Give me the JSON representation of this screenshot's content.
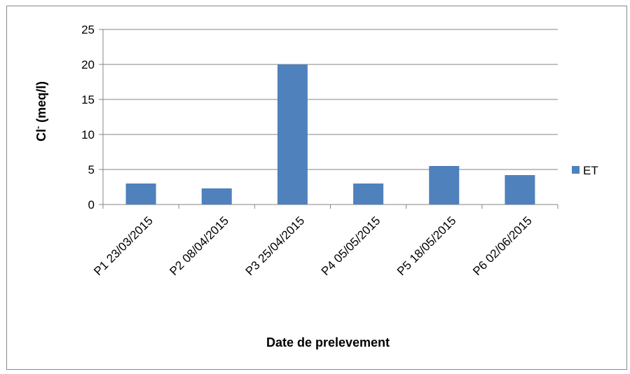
{
  "chart_data": {
    "type": "bar",
    "categories": [
      "P1 23/03/2015",
      "P2 08/04/2015",
      "P3 25/04/2015",
      "P4 05/05/2015",
      "P5 18/05/2015",
      "P6 02/06/2015"
    ],
    "series": [
      {
        "name": "ET",
        "values": [
          3,
          2.3,
          20,
          3,
          5.5,
          4.2
        ]
      }
    ],
    "title": "",
    "xlabel": "Date de prelevement",
    "ylabel": {
      "main": "Cl",
      "sup": "-",
      "unit": " (meq/l)"
    },
    "yticks": [
      "0",
      "5",
      "10",
      "15",
      "20",
      "25"
    ],
    "ylim": [
      0,
      25
    ],
    "grid": true,
    "legend_position": "right",
    "colors": {
      "bar": "#4f81bd",
      "grid": "#868686",
      "axis": "#868686"
    }
  }
}
